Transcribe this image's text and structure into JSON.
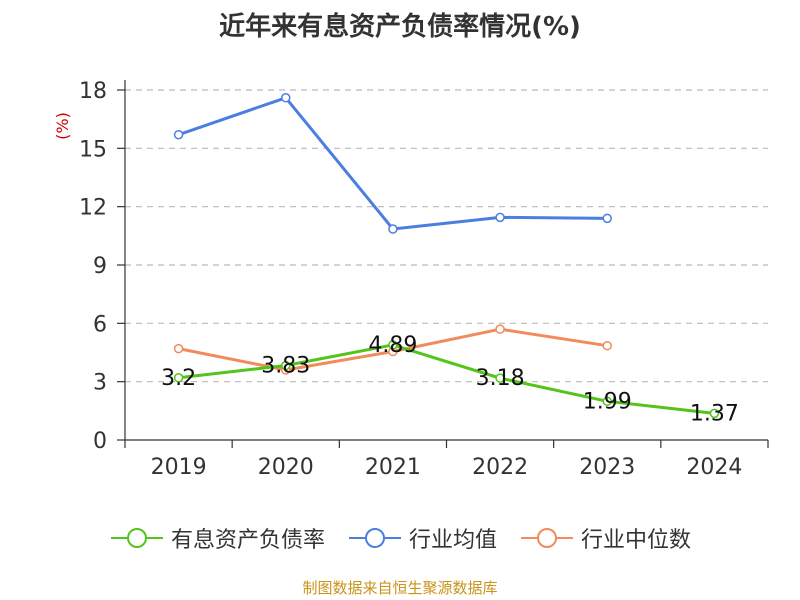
{
  "title": "近年来有息资产负债率情况(%)",
  "source": "制图数据来自恒生聚源数据库",
  "chart_data": {
    "type": "line",
    "title": "近年来有息资产负债率情况(%)",
    "ylabel": "(%)",
    "xlabel": "",
    "categories": [
      "2019",
      "2020",
      "2021",
      "2022",
      "2023",
      "2024"
    ],
    "ylim": [
      0,
      18
    ],
    "yticks": [
      0,
      3,
      6,
      9,
      12,
      15,
      18
    ],
    "grid": true,
    "legend_position": "bottom",
    "series": [
      {
        "name": "有息资产负债率",
        "color": "#52c41a",
        "values": [
          3.2,
          3.83,
          4.89,
          3.18,
          1.99,
          1.37
        ],
        "labels": [
          "3.2",
          "3.83",
          "4.89",
          "3.18",
          "1.99",
          "1.37"
        ]
      },
      {
        "name": "行业均值",
        "color": "#4a7fe0",
        "values": [
          15.7,
          17.6,
          10.85,
          11.45,
          11.4,
          null
        ]
      },
      {
        "name": "行业中位数",
        "color": "#f28b5b",
        "values": [
          4.7,
          3.6,
          4.55,
          5.7,
          4.85,
          null
        ]
      }
    ]
  }
}
